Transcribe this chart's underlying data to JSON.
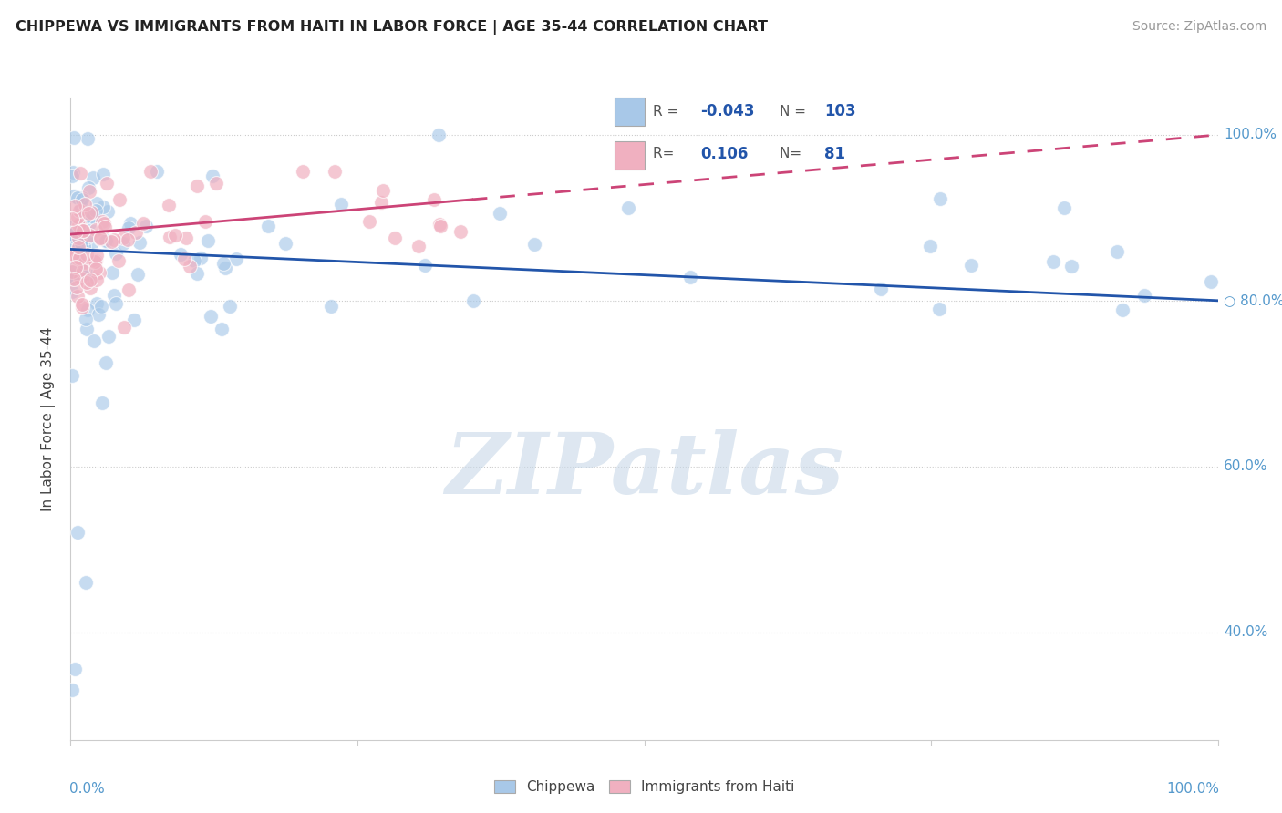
{
  "title": "CHIPPEWA VS IMMIGRANTS FROM HAITI IN LABOR FORCE | AGE 35-44 CORRELATION CHART",
  "source": "Source: ZipAtlas.com",
  "ylabel": "In Labor Force | Age 35-44",
  "legend_labels": [
    "Chippewa",
    "Immigrants from Haiti"
  ],
  "r_chippewa": -0.043,
  "n_chippewa": 103,
  "r_haiti": 0.106,
  "n_haiti": 81,
  "blue_color": "#a8c8e8",
  "pink_color": "#f0b0c0",
  "trend_blue": "#2255aa",
  "trend_pink": "#cc4477",
  "background": "#ffffff",
  "xlim": [
    0.0,
    1.0
  ],
  "ylim": [
    0.27,
    1.045
  ],
  "ytick_right": [
    0.4,
    0.6,
    0.8,
    1.0
  ],
  "ytick_left": [],
  "xtick_bottom": [
    0.0,
    1.0
  ],
  "watermark": "ZIPatlas",
  "watermark_color": "#c8d8e8",
  "legend_r1_label": "R = ",
  "legend_r1_val": "-0.043",
  "legend_n1_label": "N = ",
  "legend_n1_val": "103",
  "legend_r2_label": "R=",
  "legend_r2_val": "0.106",
  "legend_n2_label": "N=",
  "legend_n2_val": "81"
}
